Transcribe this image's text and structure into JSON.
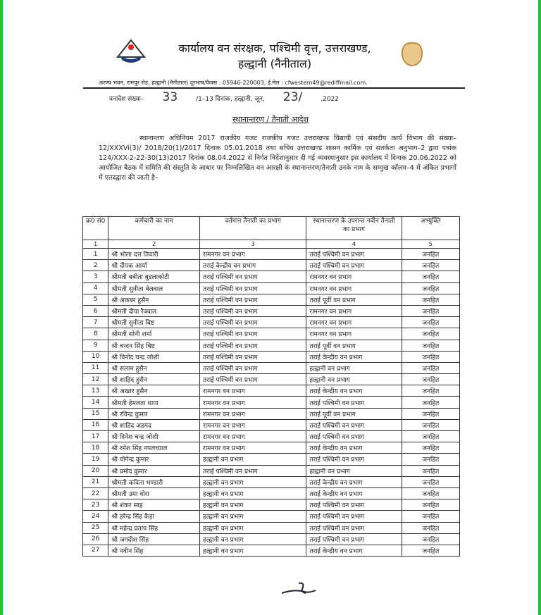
{
  "header": {
    "title_line1": "कार्यालय वन संरक्षक, पश्चिमी वृत्त, उत्तराखण्ड,",
    "title_line2": "हल्द्वानी (नैनीताल)",
    "address": "अरण्य भवन, रामपुर रोड, हल्द्वानी (नैनीताल) दूरभाष/फैक्स : 05946-220003, ई.मेल : cfwestern49@rediffmail.com."
  },
  "reference": {
    "label": "वनादेश संख्या–",
    "number": "33",
    "suffix": "/1–13 दिनांक, हल्द्वानी, जून,",
    "day": "23/",
    "year": ",2022"
  },
  "subject": "स्थानान्तरण / तैनाती आदेश",
  "paragraph": "स्थानान्तण अधिनियम 2017 राजकीय गजट राजकीय गजट उत्तराखण्ड विद्यायी एवं संसदीय कार्य विभाग की संख्या–12/XXXVi(3)/ 2018/20(1)/2017 दिनाक 05.01.2018 तथा सचिव उत्तराखण्ड शासन कार्मिक एवं सतर्कता अनुभाग–2 द्वारा पत्रांक 124/XXX-2-22-30(13)2017 दिनांक 08.04.2022 से निर्गत निर्देशानुसार दी गई व्यवस्थानुसार इस कार्यालय में दिनाक 20.06.2022 को आयोजित बैठक में समिति की संस्तुति के आधार पर निम्नलिखित वन आरक्षी के स्थानान्तरण/तैनाती उनके नाम के सम्मुख कॉलम–4 में अंकित प्रभागों में एतदद्वारा की जाती है–",
  "table": {
    "headers": [
      "क्र0 सं0",
      "कर्मचारी का नाम",
      "वर्तमान तैनाती का प्रभाग",
      "स्थानान्तरण के उपरान्त नवीन तैनाती का प्रभाग",
      "अभ्युक्ति"
    ],
    "column_numbers": [
      "1",
      "2",
      "3",
      "4",
      "5"
    ],
    "rows": [
      [
        "1",
        "श्री भोला दत्त तिवारी",
        "रामनगर वन प्रभाग",
        "तराई पश्चिमी वन प्रभाग",
        "जनहित"
      ],
      [
        "2",
        "श्री दीपक आर्या",
        "तराई केन्द्रीय वन प्रभाग",
        "तराई पश्चिमी वन प्रभाग",
        "जनहित"
      ],
      [
        "3",
        "श्रीमती बबीता बुडलाकोटी",
        "तराई पश्चिमी वन प्रभाग",
        "रामनगर वन प्रभाग",
        "जनहित"
      ],
      [
        "4",
        "श्रीमती सुनीता बेलवाल",
        "तराई पश्चिमी वन प्रभाग",
        "रामनगर वन प्रभाग",
        "जनहित"
      ],
      [
        "5",
        "श्री अकबर हुसैन",
        "तराई पश्चिमी वन प्रभाग",
        "तराई पूर्वी वन प्रभाग",
        "जनहित"
      ],
      [
        "6",
        "श्रीमती दीपा रैक्वाल",
        "तराई पश्चिमी वन प्रभाग",
        "रामनगर वन प्रभाग",
        "जनहित"
      ],
      [
        "7",
        "श्रीमती सुनीता बिष्ट",
        "तराई पश्चिमी वन प्रभाग",
        "रामनगर वन प्रभाग",
        "जनहित"
      ],
      [
        "8",
        "श्रीमती सोनी शर्मा",
        "तराई पश्चिमी वन प्रभाग",
        "रामनगर वन प्रभाग",
        "जनहित"
      ],
      [
        "9",
        "श्री चन्दन सिंह बिष्ट",
        "तराई पश्चिमी वन प्रभाग",
        "तराई पूर्वी वन प्रभाग",
        "जनहित"
      ],
      [
        "10",
        "श्री विनोद चन्द्र जोशी",
        "तराई पश्चिमी वन प्रभाग",
        "तराई केन्द्रीय वन प्रभाग",
        "जनहित"
      ],
      [
        "11",
        "श्री सलाम हुसैन",
        "तराई पश्चिमी वन प्रभाग",
        "हल्द्वानी वन प्रभाग",
        "जनहित"
      ],
      [
        "12",
        "श्री शाहिद हुसैन",
        "तराई पश्चिमी वन प्रभाग",
        "हल्द्वानी वन प्रभाग",
        "जनहित"
      ],
      [
        "13",
        "श्री अख्तर हुसैन",
        "रामनगर वन प्रभाग",
        "तराई केन्द्रीय वन प्रभाग",
        "जनहित"
      ],
      [
        "14",
        "श्रीमती हेमलता थापा",
        "रामनगर वन प्रभाग",
        "तराई पश्चिमी वन प्रभाग",
        "जनहित"
      ],
      [
        "15",
        "श्री रविन्द्र कुमार",
        "रामनगर वन प्रभाग",
        "तराई पूर्वी वन प्रभाग",
        "जनहित"
      ],
      [
        "16",
        "श्री शाहिद अहमद",
        "रामनगर वन प्रभाग",
        "तराई पश्चिमी वन प्रभाग",
        "जनहित"
      ],
      [
        "17",
        "श्री दिनेश चन्द्र जोशी",
        "रामनगर वन प्रभाग",
        "तराई पश्चिमी वन प्रभाग",
        "जनहित"
      ],
      [
        "18",
        "श्री रमेश सिंह नपलच्याल",
        "रामनगर वन प्रभाग",
        "तराई केन्द्रीय वन प्रभाग",
        "जनहित"
      ],
      [
        "19",
        "श्री योगेन्द्र कुमार",
        "हल्द्वानी वन प्रभाग",
        "तराई पश्चिमी वन प्रभाग",
        "जनहित"
      ],
      [
        "20",
        "श्री प्रमोद कुमार",
        "तराई पश्चिमी वन प्रभाग",
        "हल्द्वानी वन प्रभाग",
        "जनहित"
      ],
      [
        "21",
        "श्रीमती कविता भण्डारी",
        "हल्द्वानी वन प्रभाग",
        "तराई केन्द्रीय वन प्रभाग",
        "जनहित"
      ],
      [
        "22",
        "श्रीमती उमा वोरा",
        "हल्द्वानी वन प्रभाग",
        "तराई केन्द्रीय वन प्रभाग",
        "जनहित"
      ],
      [
        "23",
        "श्री शंकर साह",
        "हल्द्वानी वन प्रभाग",
        "तराई पश्चिमी वन प्रभाग",
        "जनहित"
      ],
      [
        "24",
        "श्री हरेन्द्र सिंह कैड़ा",
        "हल्द्वानी वन प्रभाग",
        "तराई पश्चिमी वन प्रभाग",
        "जनहित"
      ],
      [
        "25",
        "श्री महेन्द्र प्रताप सिंह",
        "हल्द्वानी वन प्रभाग",
        "तराई पश्चिमी वन प्रभाग",
        "जनहित"
      ],
      [
        "26",
        "श्री जगदीश सिंह",
        "हल्द्वानी वन प्रभाग",
        "तराई पश्चिमी वन प्रभाग",
        "जनहित"
      ],
      [
        "27",
        "श्री नवीन सिंह",
        "हल्द्वानी वन प्रभाग",
        "तराई केन्द्रीय वन प्रभाग",
        "जनहित"
      ]
    ]
  },
  "colors": {
    "frame": "#22c833"
  }
}
